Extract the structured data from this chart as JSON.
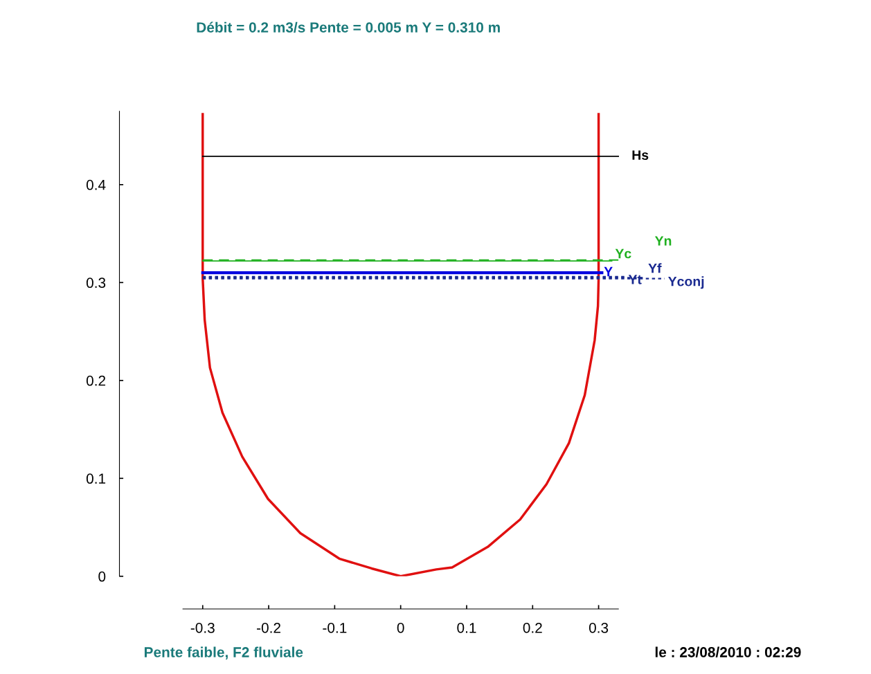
{
  "chart_data": {
    "type": "line",
    "title": "Débit = 0.2 m3/s Pente = 0.005 m Y = 0.310 m",
    "annotations": [
      "Pente faible, F2 fluviale",
      "le : 23/08/2010 : 02:29"
    ],
    "series": [
      {
        "color": "#e01010",
        "x": [
          -0.3,
          -0.3,
          -0.297,
          -0.289,
          -0.27,
          -0.24,
          -0.201,
          -0.152,
          -0.093,
          -0.044,
          0,
          0.054,
          0.078,
          0.132,
          0.181,
          0.221,
          0.255,
          0.279,
          0.294,
          0.299,
          0.3,
          0.3
        ],
        "values": [
          0.472,
          0.304,
          0.262,
          0.213,
          0.167,
          0.122,
          0.079,
          0.044,
          0.018,
          0.008,
          0,
          0.007,
          0.009,
          0.03,
          0.058,
          0.094,
          0.136,
          0.185,
          0.241,
          0.276,
          0.304,
          0.472
        ]
      }
    ],
    "xlim": [
      -0.33,
      0.33
    ],
    "xticks": [
      -0.3,
      -0.2,
      -0.1,
      0,
      0.1,
      0.2,
      0.3
    ],
    "ylim": [
      0,
      0.475
    ],
    "yticks": [
      0,
      0.1,
      0.2,
      0.3,
      0.4
    ],
    "ref_lines": [
      {
        "axis": "y",
        "value": 0.429,
        "label": "Hs",
        "color": "#000000",
        "line_style": "solid"
      },
      {
        "axis": "y",
        "value": 0.323,
        "label": "Yn",
        "color": "#20b020",
        "line_style": "dashed"
      },
      {
        "axis": "y",
        "value": 0.322,
        "label": "Yc",
        "color": "#20b020",
        "line_style": "solid"
      },
      {
        "axis": "y",
        "value": 0.31,
        "label": "Y",
        "color": "#0000e0",
        "line_style": "solid"
      },
      {
        "axis": "y",
        "value": 0.306,
        "label": "Yt",
        "color": "#1a2a90",
        "line_style": "dotted"
      },
      {
        "axis": "y",
        "value": 0.305,
        "label": "Yf",
        "color": "#1a2a90",
        "line_style": "dotted"
      },
      {
        "axis": "y",
        "value": 0.304,
        "label": "Yconj",
        "color": "#1a2a90",
        "line_style": "dotted"
      }
    ],
    "grid": false,
    "legend": false,
    "marker": "none",
    "line_style": "solid"
  }
}
